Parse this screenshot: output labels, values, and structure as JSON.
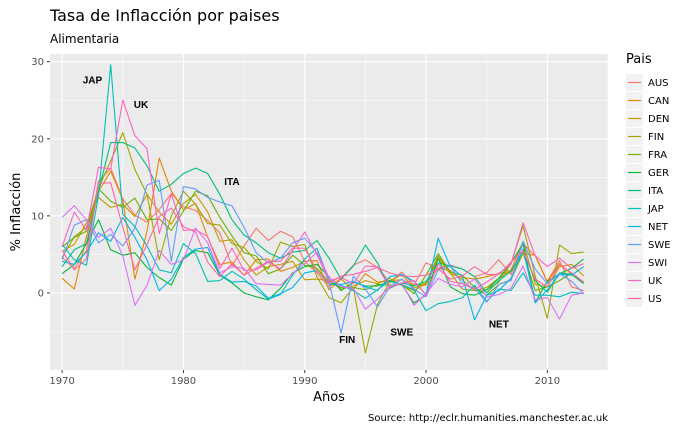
{
  "chart_data": {
    "type": "line",
    "title": "Tasa de Inflacción por paises",
    "subtitle": "Alimentaria",
    "xlabel": "Años",
    "ylabel": "% Inflacción",
    "caption": "Source: http://eclr.humanities.manchester.ac.uk",
    "xlim": [
      1969,
      2015
    ],
    "ylim": [
      -10,
      31
    ],
    "x_ticks": [
      1970,
      1980,
      1990,
      2000,
      2010
    ],
    "y_ticks": [
      0,
      10,
      20,
      30
    ],
    "grid": true,
    "legend_position": "right",
    "legend_title": "Pais",
    "x": [
      1970,
      1971,
      1972,
      1973,
      1974,
      1975,
      1976,
      1977,
      1978,
      1979,
      1980,
      1981,
      1982,
      1983,
      1984,
      1985,
      1986,
      1987,
      1988,
      1989,
      1990,
      1991,
      1992,
      1993,
      1994,
      1995,
      1996,
      1997,
      1998,
      1999,
      2000,
      2001,
      2002,
      2003,
      2004,
      2005,
      2006,
      2007,
      2008,
      2009,
      2010,
      2011,
      2012,
      2013
    ],
    "series": [
      {
        "name": "AUS",
        "color": "#F8766D",
        "values": [
          4.6,
          3.2,
          5.5,
          14.5,
          16.2,
          12.2,
          10.1,
          9.2,
          10.8,
          12.9,
          11.2,
          10.7,
          9.4,
          7.8,
          3.5,
          6.1,
          8.4,
          6.8,
          8.0,
          7.3,
          4.1,
          2.6,
          0.8,
          1.9,
          3.6,
          4.3,
          3.3,
          1.4,
          2.7,
          1.0,
          3.9,
          3.2,
          3.6,
          3.1,
          2.1,
          2.6,
          4.3,
          2.4,
          6.4,
          4.8,
          1.5,
          4.2,
          0.8,
          0.3
        ]
      },
      {
        "name": "CAN",
        "color": "#E58700",
        "values": [
          1.9,
          0.5,
          7.3,
          13.2,
          15.8,
          12.1,
          1.8,
          8.0,
          17.5,
          13.2,
          10.8,
          11.6,
          7.2,
          3.7,
          4.0,
          2.3,
          4.3,
          4.4,
          2.8,
          3.3,
          4.1,
          4.2,
          0.4,
          1.8,
          0.4,
          2.5,
          1.4,
          1.6,
          1.7,
          1.0,
          1.0,
          4.5,
          2.5,
          2.0,
          1.8,
          2.1,
          2.5,
          2.8,
          5.1,
          4.9,
          1.4,
          3.8,
          2.4,
          1.3
        ]
      },
      {
        "name": "DEN",
        "color": "#C99800",
        "values": [
          5.4,
          6.3,
          9.1,
          12.4,
          11.1,
          11.5,
          9.9,
          12.8,
          10.5,
          8.9,
          11.6,
          12.8,
          10.5,
          6.7,
          6.9,
          4.3,
          2.3,
          3.4,
          3.7,
          4.1,
          1.7,
          1.8,
          1.6,
          0.5,
          0.9,
          1.6,
          1.2,
          1.9,
          1.0,
          0.3,
          1.2,
          3.2,
          2.9,
          1.7,
          0.3,
          0.7,
          1.9,
          3.0,
          6.7,
          1.1,
          0.8,
          3.4,
          3.7,
          2.2
        ]
      },
      {
        "name": "FIN",
        "color": "#A3A500",
        "values": [
          4.6,
          7.3,
          8.5,
          13.6,
          17.1,
          20.8,
          16.0,
          12.8,
          4.3,
          10.0,
          13.2,
          11.5,
          9.0,
          8.8,
          6.4,
          5.9,
          4.1,
          3.1,
          6.6,
          6.0,
          6.3,
          2.1,
          -0.6,
          -1.3,
          0.7,
          -7.8,
          -1.5,
          1.5,
          2.4,
          0.6,
          1.3,
          4.8,
          2.6,
          0.5,
          0.3,
          0.4,
          1.4,
          3.8,
          8.7,
          2.2,
          -3.3,
          6.2,
          5.1,
          5.3
        ]
      },
      {
        "name": "FRA",
        "color": "#6BB100",
        "values": [
          6.0,
          7.2,
          8.0,
          13.5,
          11.9,
          11.1,
          12.3,
          9.5,
          9.6,
          8.1,
          10.6,
          13.2,
          12.6,
          9.8,
          7.4,
          5.2,
          4.8,
          2.5,
          3.1,
          4.9,
          3.6,
          3.2,
          1.4,
          0.7,
          0.7,
          0.4,
          1.1,
          1.0,
          1.1,
          -0.1,
          2.3,
          5.1,
          2.7,
          2.3,
          0.7,
          -0.3,
          1.1,
          1.7,
          5.2,
          0.3,
          0.8,
          1.6,
          2.6,
          1.4
        ]
      },
      {
        "name": "GER",
        "color": "#00BA38",
        "values": [
          2.5,
          3.7,
          6.4,
          9.5,
          5.6,
          4.9,
          5.2,
          3.3,
          2.0,
          1.0,
          4.4,
          5.5,
          5.2,
          2.3,
          1.3,
          0.0,
          -0.5,
          -0.9,
          0.6,
          2.6,
          3.4,
          3.7,
          2.1,
          0.3,
          1.4,
          0.9,
          0.9,
          1.5,
          1.1,
          -1.3,
          -0.3,
          4.5,
          0.8,
          -0.1,
          -0.3,
          0.4,
          1.9,
          3.9,
          6.4,
          -1.2,
          1.5,
          2.5,
          3.2,
          4.4
        ]
      },
      {
        "name": "ITA",
        "color": "#00BF7D",
        "values": [
          3.4,
          5.6,
          6.4,
          13.2,
          19.5,
          19.5,
          18.8,
          16.5,
          13.2,
          14.1,
          15.5,
          16.2,
          15.5,
          12.8,
          9.5,
          7.5,
          6.5,
          5.2,
          4.5,
          5.3,
          5.5,
          6.8,
          4.5,
          1.8,
          3.5,
          6.2,
          3.9,
          0.6,
          1.3,
          0.9,
          1.5,
          3.9,
          3.5,
          3.1,
          2.1,
          0.0,
          1.6,
          2.8,
          5.5,
          1.6,
          0.1,
          2.6,
          2.4,
          1.2
        ]
      },
      {
        "name": "JAP",
        "color": "#00C0B8",
        "values": [
          6.3,
          4.3,
          3.6,
          12.7,
          29.6,
          10.2,
          8.6,
          6.1,
          3.0,
          2.6,
          6.4,
          5.1,
          1.5,
          1.6,
          2.8,
          1.8,
          0.4,
          -0.8,
          -0.2,
          2.3,
          4.4,
          5.8,
          1.7,
          1.0,
          0.3,
          -0.7,
          0.4,
          1.6,
          1.1,
          0.4,
          -2.3,
          -1.4,
          -1.1,
          -0.6,
          1.0,
          -1.1,
          0.5,
          0.3,
          2.6,
          -0.3,
          -0.3,
          -0.5,
          0.1,
          -0.1
        ]
      },
      {
        "name": "NET",
        "color": "#00B4EF",
        "values": [
          4.1,
          3.7,
          5.3,
          7.8,
          6.7,
          9.8,
          7.2,
          4.3,
          0.3,
          1.8,
          4.6,
          5.7,
          5.9,
          2.4,
          1.4,
          1.5,
          0.9,
          -0.7,
          -0.1,
          0.7,
          2.6,
          2.9,
          1.1,
          1.1,
          1.5,
          0.8,
          0.3,
          2.1,
          2.4,
          1.5,
          -0.2,
          7.1,
          3.4,
          2.1,
          -3.5,
          -0.3,
          0.3,
          1.9,
          5.7,
          -1.3,
          0.4,
          2.4,
          2.3,
          3.4
        ]
      },
      {
        "name": "SWE",
        "color": "#619CFF",
        "values": [
          4.3,
          8.8,
          9.5,
          6.5,
          7.6,
          6.1,
          8.4,
          14.0,
          14.6,
          4.1,
          13.8,
          13.5,
          12.4,
          11.8,
          11.3,
          8.5,
          5.2,
          3.9,
          4.5,
          6.5,
          7.1,
          5.2,
          1.4,
          -5.2,
          2.2,
          0.5,
          -1.8,
          0.8,
          1.8,
          0.5,
          -0.5,
          3.0,
          3.5,
          1.2,
          0.6,
          -1.2,
          1.1,
          1.6,
          6.7,
          3.1,
          1.2,
          2.5,
          1.5,
          -0.1
        ]
      },
      {
        "name": "SWI",
        "color": "#DB72FB",
        "values": [
          9.8,
          11.3,
          9.5,
          7.2,
          8.4,
          4.8,
          -1.6,
          1.0,
          5.5,
          3.7,
          4.3,
          8.4,
          6.5,
          2.6,
          3.4,
          3.2,
          1.2,
          1.1,
          1.0,
          2.5,
          3.8,
          5.3,
          2.0,
          0.8,
          0.6,
          -2.1,
          -0.8,
          0.8,
          1.3,
          -1.6,
          -0.1,
          1.9,
          1.1,
          0.8,
          1.8,
          -0.5,
          -0.2,
          0.6,
          3.5,
          -0.9,
          -0.6,
          -3.4,
          -0.3,
          0.0
        ]
      },
      {
        "name": "UK",
        "color": "#FF61C3",
        "values": [
          6.0,
          10.5,
          8.1,
          16.3,
          16.1,
          25.0,
          20.4,
          18.7,
          7.7,
          12.8,
          8.1,
          8.2,
          7.3,
          3.2,
          5.8,
          2.9,
          3.0,
          4.0,
          3.1,
          5.5,
          7.9,
          5.0,
          1.6,
          2.0,
          1.2,
          3.5,
          3.4,
          0.7,
          1.3,
          1.6,
          -0.3,
          3.8,
          1.5,
          1.2,
          0.5,
          1.4,
          2.5,
          3.7,
          9.1,
          4.8,
          3.4,
          4.5,
          3.2,
          3.8
        ]
      },
      {
        "name": "US",
        "color": "#FF67A4",
        "values": [
          5.5,
          3.0,
          4.4,
          14.2,
          14.3,
          8.5,
          3.0,
          6.3,
          9.9,
          11.0,
          8.6,
          7.9,
          4.0,
          2.1,
          3.8,
          2.3,
          3.2,
          4.1,
          4.1,
          5.8,
          5.8,
          2.9,
          1.2,
          2.2,
          2.4,
          2.8,
          3.3,
          2.6,
          2.2,
          2.1,
          2.3,
          3.1,
          1.8,
          2.2,
          3.4,
          2.4,
          2.4,
          4.0,
          5.5,
          1.8,
          0.8,
          3.7,
          2.6,
          1.4
        ]
      }
    ],
    "annotations": [
      {
        "text": "JAP",
        "x": 1972.5,
        "y": 27.2
      },
      {
        "text": "UK",
        "x": 1976.5,
        "y": 24.0
      },
      {
        "text": "ITA",
        "x": 1984.0,
        "y": 14.0
      },
      {
        "text": "FIN",
        "x": 1993.5,
        "y": -6.5
      },
      {
        "text": "SWE",
        "x": 1998.0,
        "y": -5.5
      },
      {
        "text": "NET",
        "x": 2006.0,
        "y": -4.5
      }
    ]
  }
}
